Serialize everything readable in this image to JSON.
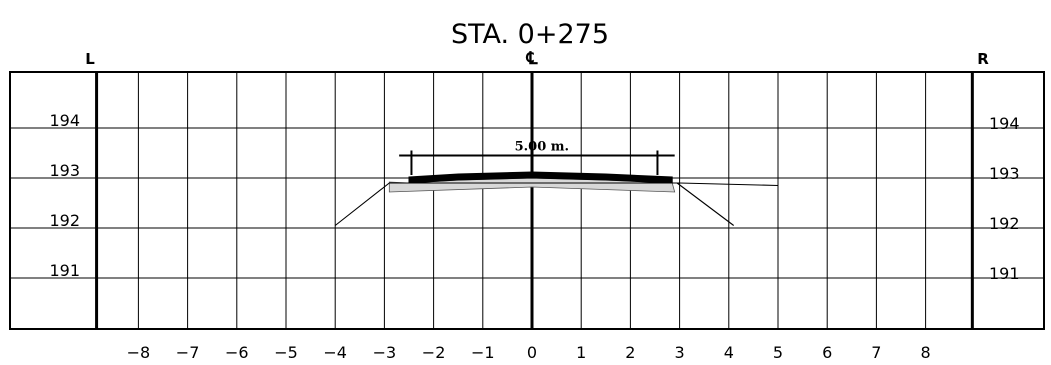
{
  "title": "STA. 0+275",
  "left_label": "L",
  "right_label": "R",
  "centerline_symbol": "℄",
  "dimension_label": "5.00 m.",
  "y_ticks": [
    {
      "value": 194,
      "label": "194"
    },
    {
      "value": 193,
      "label": "193"
    },
    {
      "value": 192,
      "label": "192"
    },
    {
      "value": 191,
      "label": "191"
    }
  ],
  "x_ticks": [
    {
      "value": -8,
      "label": "−8"
    },
    {
      "value": -7,
      "label": "−7"
    },
    {
      "value": -6,
      "label": "−6"
    },
    {
      "value": -5,
      "label": "−5"
    },
    {
      "value": -4,
      "label": "−4"
    },
    {
      "value": -3,
      "label": "−3"
    },
    {
      "value": -2,
      "label": "−2"
    },
    {
      "value": -1,
      "label": "−1"
    },
    {
      "value": 0,
      "label": "0"
    },
    {
      "value": 1,
      "label": "1"
    },
    {
      "value": 2,
      "label": "2"
    },
    {
      "value": 3,
      "label": "3"
    },
    {
      "value": 4,
      "label": "4"
    },
    {
      "value": 5,
      "label": "5"
    },
    {
      "value": 6,
      "label": "6"
    },
    {
      "value": 7,
      "label": "7"
    },
    {
      "value": 8,
      "label": "8"
    }
  ],
  "section_data": {
    "x_range": [
      -9,
      9
    ],
    "y_range": [
      190.1,
      195.1
    ],
    "ground_line": [
      [
        -4.0,
        192.05
      ],
      [
        -2.9,
        192.9
      ],
      [
        3.0,
        192.9
      ],
      [
        5.0,
        192.85
      ]
    ],
    "fill_slope_right": [
      [
        2.95,
        192.9
      ],
      [
        4.1,
        192.05
      ]
    ],
    "pavement_top": [
      [
        -2.5,
        193.02
      ],
      [
        -1.5,
        193.08
      ],
      [
        0,
        193.12
      ],
      [
        1.5,
        193.08
      ],
      [
        2.85,
        193.02
      ]
    ],
    "subgrade_bottom": [
      [
        -2.9,
        192.72
      ],
      [
        0,
        192.82
      ],
      [
        2.9,
        192.72
      ]
    ],
    "road_width": [
      -2.45,
      2.55
    ],
    "dimension_line": {
      "x1": -2.7,
      "x2": 2.9,
      "y": 193.45
    }
  }
}
